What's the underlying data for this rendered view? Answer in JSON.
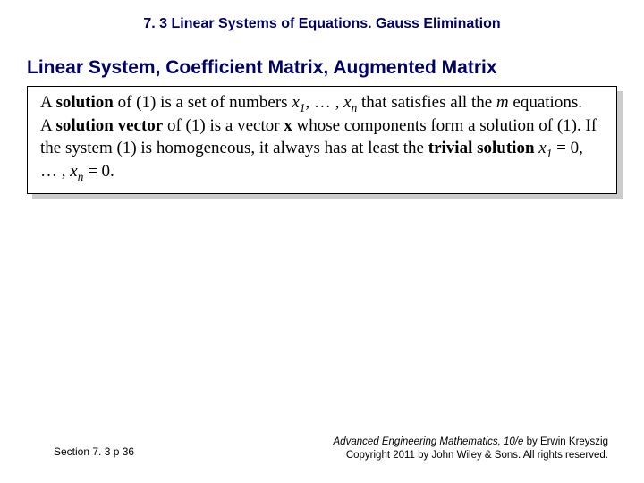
{
  "header": {
    "title": "7. 3 Linear Systems of Equations.  Gauss Elimination"
  },
  "subheader": {
    "text": "Linear System, Coefficient Matrix, Augmented Matrix"
  },
  "content": {
    "p1_a": "A ",
    "p1_b": "solution",
    "p1_c": " of (1) is a set of numbers ",
    "p1_x": "x",
    "p1_sub1": "1",
    "p1_d": ", … , ",
    "p1_subn": "n",
    "p1_e": " that satisfies all the ",
    "p1_m": "m",
    "p1_f": " equations.",
    "p2_a": "A ",
    "p2_b": "solution vector",
    "p2_c": " of (1) is a vector ",
    "p2_x": "x",
    "p2_d": " whose components form a solution of (1). If the system (1) is homogeneous, it always has at least the ",
    "p2_e": "trivial solution",
    "p2_f": " ",
    "p2_sub1": "1",
    "p2_g": " = 0, … , ",
    "p2_subn": "n",
    "p2_h": " = 0."
  },
  "footer": {
    "left": "Section 7. 3  p 36",
    "right_title": "Advanced Engineering Mathematics, 10/e",
    "right_by": " by Erwin Kreyszig",
    "right_copy": "Copyright 2011 by John Wiley & Sons. All rights reserved."
  },
  "colors": {
    "heading": "#000066",
    "text": "#000000",
    "shadow": "#cccccc",
    "background": "#ffffff"
  }
}
